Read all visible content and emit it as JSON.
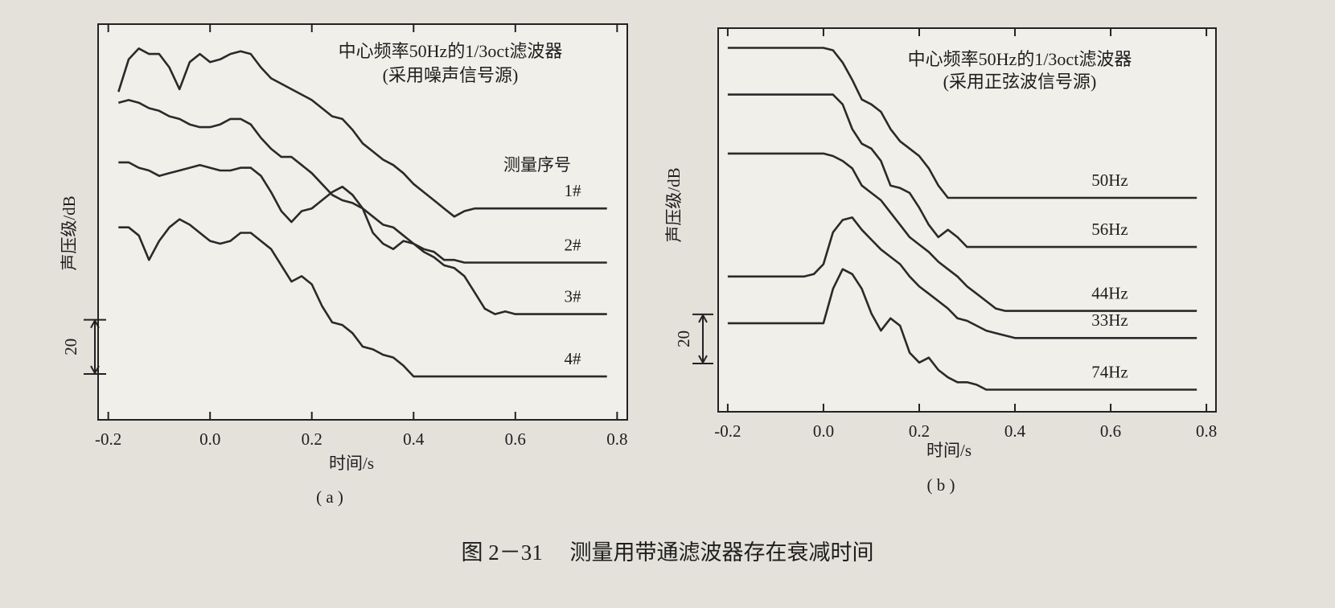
{
  "chart_data": [
    {
      "type": "line",
      "annotations": [
        "中心频率50Hz的1/3oct滤波器",
        "(采用噪声信号源)"
      ],
      "xlabel": "时间/s",
      "ylabel": "声压级/dB",
      "subcaption": "( a )",
      "legend_title": "测量序号",
      "scale_bar": 20,
      "xlim": [
        -0.22,
        0.82
      ],
      "ylim": [
        0,
        146
      ],
      "xticks": [
        -0.2,
        {
          "value": 0,
          "label": "0.0"
        },
        0.2,
        0.4,
        0.6,
        0.8
      ],
      "x": [
        -0.18,
        -0.16,
        -0.14,
        -0.12,
        -0.1,
        -0.08,
        -0.06,
        -0.04,
        -0.02,
        0,
        0.02,
        0.04,
        0.06,
        0.08,
        0.1,
        0.12,
        0.14,
        0.16,
        0.18,
        0.2,
        0.22,
        0.24,
        0.26,
        0.28,
        0.3,
        0.32,
        0.34,
        0.36,
        0.38,
        0.4,
        0.42,
        0.44,
        0.46,
        0.48,
        0.5,
        0.52,
        0.54,
        0.56,
        0.58,
        0.6,
        0.62,
        0.64,
        0.66,
        0.68,
        0.7,
        0.72,
        0.74,
        0.76,
        0.78
      ],
      "series": [
        {
          "name": "1#",
          "color": "#2a2a2a",
          "values": [
            121,
            133,
            137,
            135,
            135,
            130,
            122,
            132,
            135,
            132,
            133,
            135,
            136,
            135,
            130,
            126,
            124,
            122,
            120,
            118,
            115,
            112,
            111,
            107,
            102,
            99,
            96,
            94,
            91,
            87,
            84,
            81,
            78,
            75,
            77,
            78,
            78,
            78,
            78,
            78,
            78,
            78,
            78,
            78,
            78,
            78,
            78,
            78,
            78
          ]
        },
        {
          "name": "2#",
          "color": "#2a2a2a",
          "values": [
            117,
            118,
            117,
            115,
            114,
            112,
            111,
            109,
            108,
            108,
            109,
            111,
            111,
            109,
            104,
            100,
            97,
            97,
            94,
            91,
            87,
            83,
            81,
            80,
            78,
            75,
            72,
            71,
            68,
            65,
            63,
            62,
            59,
            59,
            58,
            58,
            58,
            58,
            58,
            58,
            58,
            58,
            58,
            58,
            58,
            58,
            58,
            58,
            58
          ]
        },
        {
          "name": "3#",
          "color": "#2a2a2a",
          "values": [
            95,
            95,
            93,
            92,
            90,
            91,
            92,
            93,
            94,
            93,
            92,
            92,
            93,
            93,
            90,
            84,
            77,
            73,
            77,
            78,
            81,
            84,
            86,
            83,
            78,
            69,
            65,
            63,
            66,
            65,
            62,
            60,
            57,
            56,
            53,
            47,
            41,
            39,
            40,
            39,
            39,
            39,
            39,
            39,
            39,
            39,
            39,
            39,
            39
          ]
        },
        {
          "name": "4#",
          "color": "#2a2a2a",
          "values": [
            71,
            71,
            68,
            59,
            66,
            71,
            74,
            72,
            69,
            66,
            65,
            66,
            69,
            69,
            66,
            63,
            57,
            51,
            53,
            50,
            42,
            36,
            35,
            32,
            27,
            26,
            24,
            23,
            20,
            16,
            16,
            16,
            16,
            16,
            16,
            16,
            16,
            16,
            16,
            16,
            16,
            16,
            16,
            16,
            16,
            16,
            16,
            16,
            16
          ]
        }
      ]
    },
    {
      "type": "line",
      "annotations": [
        "中心频率50Hz的1/3oct滤波器",
        "(采用正弦波信号源)"
      ],
      "xlabel": "时间/s",
      "ylabel": "声压级/dB",
      "subcaption": "( b )",
      "scale_bar": 20,
      "xlim": [
        -0.22,
        0.82
      ],
      "ylim": [
        0,
        156
      ],
      "xticks": [
        -0.2,
        {
          "value": 0,
          "label": "0.0"
        },
        0.2,
        0.4,
        0.6,
        0.8
      ],
      "x": [
        -0.2,
        -0.18,
        -0.16,
        -0.14,
        -0.12,
        -0.1,
        -0.08,
        -0.06,
        -0.04,
        -0.02,
        0,
        0.02,
        0.04,
        0.06,
        0.08,
        0.1,
        0.12,
        0.14,
        0.16,
        0.18,
        0.2,
        0.22,
        0.24,
        0.26,
        0.28,
        0.3,
        0.32,
        0.34,
        0.36,
        0.38,
        0.4,
        0.42,
        0.44,
        0.46,
        0.48,
        0.5,
        0.52,
        0.54,
        0.56,
        0.58,
        0.6,
        0.62,
        0.64,
        0.66,
        0.68,
        0.7,
        0.72,
        0.74,
        0.76,
        0.78
      ],
      "series": [
        {
          "name": "50Hz",
          "color": "#2a2a2a",
          "values": [
            148,
            148,
            148,
            148,
            148,
            148,
            148,
            148,
            148,
            148,
            148,
            147,
            142,
            135,
            127,
            125,
            122,
            115,
            110,
            107,
            104,
            99,
            92,
            87,
            87,
            87,
            87,
            87,
            87,
            87,
            87,
            87,
            87,
            87,
            87,
            87,
            87,
            87,
            87,
            87,
            87,
            87,
            87,
            87,
            87,
            87,
            87,
            87,
            87,
            87
          ]
        },
        {
          "name": "56Hz",
          "color": "#2a2a2a",
          "values": [
            129,
            129,
            129,
            129,
            129,
            129,
            129,
            129,
            129,
            129,
            129,
            129,
            125,
            115,
            109,
            107,
            102,
            92,
            91,
            89,
            83,
            76,
            71,
            74,
            71,
            67,
            67,
            67,
            67,
            67,
            67,
            67,
            67,
            67,
            67,
            67,
            67,
            67,
            67,
            67,
            67,
            67,
            67,
            67,
            67,
            67,
            67,
            67,
            67,
            67
          ]
        },
        {
          "name": "44Hz",
          "color": "#2a2a2a",
          "values": [
            105,
            105,
            105,
            105,
            105,
            105,
            105,
            105,
            105,
            105,
            105,
            104,
            102,
            99,
            92,
            89,
            86,
            81,
            76,
            71,
            68,
            65,
            61,
            58,
            55,
            51,
            48,
            45,
            42,
            41,
            41,
            41,
            41,
            41,
            41,
            41,
            41,
            41,
            41,
            41,
            41,
            41,
            41,
            41,
            41,
            41,
            41,
            41,
            41,
            41
          ]
        },
        {
          "name": "33Hz",
          "color": "#2a2a2a",
          "values": [
            55,
            55,
            55,
            55,
            55,
            55,
            55,
            55,
            55,
            56,
            60,
            73,
            78,
            79,
            74,
            70,
            66,
            63,
            60,
            55,
            51,
            48,
            45,
            42,
            38,
            37,
            35,
            33,
            32,
            31,
            30,
            30,
            30,
            30,
            30,
            30,
            30,
            30,
            30,
            30,
            30,
            30,
            30,
            30,
            30,
            30,
            30,
            30,
            30,
            30
          ]
        },
        {
          "name": "74Hz",
          "color": "#2a2a2a",
          "values": [
            36,
            36,
            36,
            36,
            36,
            36,
            36,
            36,
            36,
            36,
            36,
            50,
            58,
            56,
            50,
            40,
            33,
            38,
            35,
            24,
            20,
            22,
            17,
            14,
            12,
            12,
            11,
            9,
            9,
            9,
            9,
            9,
            9,
            9,
            9,
            9,
            9,
            9,
            9,
            9,
            9,
            9,
            9,
            9,
            9,
            9,
            9,
            9,
            9,
            9
          ]
        }
      ]
    }
  ],
  "caption": "图 2－31　 测量用带通滤波器存在衰减时间"
}
